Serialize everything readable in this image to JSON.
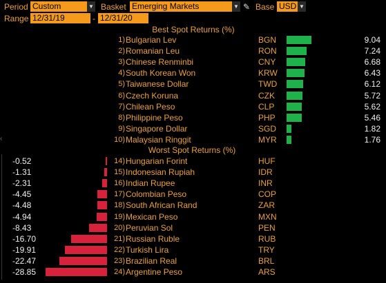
{
  "toolbar": {
    "period_label": "Period",
    "period_value": "Custom",
    "basket_label": "Basket",
    "basket_value": "Emerging Markets",
    "base_label": "Base",
    "base_value": "USD",
    "range_label": "Range",
    "range_start": "12/31/19",
    "range_sep": "-",
    "range_end": "12/31/20"
  },
  "best": {
    "title": "Best Spot Returns (%)",
    "max_value": 9.04,
    "rows": [
      {
        "rank": "1",
        "name": "Bulgarian Lev",
        "code": "BGN",
        "value": "9.04",
        "num": 9.04
      },
      {
        "rank": "2",
        "name": "Romanian Leu",
        "code": "RON",
        "value": "7.24",
        "num": 7.24
      },
      {
        "rank": "3",
        "name": "Chinese Renminbi",
        "code": "CNY",
        "value": "6.68",
        "num": 6.68
      },
      {
        "rank": "4",
        "name": "South Korean Won",
        "code": "KRW",
        "value": "6.43",
        "num": 6.43
      },
      {
        "rank": "5",
        "name": "Taiwanese Dollar",
        "code": "TWD",
        "value": "6.12",
        "num": 6.12
      },
      {
        "rank": "6",
        "name": "Czech Koruna",
        "code": "CZK",
        "value": "5.72",
        "num": 5.72
      },
      {
        "rank": "7",
        "name": "Chilean Peso",
        "code": "CLP",
        "value": "5.62",
        "num": 5.62
      },
      {
        "rank": "8",
        "name": "Philippine Peso",
        "code": "PHP",
        "value": "5.46",
        "num": 5.46
      },
      {
        "rank": "9",
        "name": "Singapore Dollar",
        "code": "SGD",
        "value": "1.82",
        "num": 1.82
      },
      {
        "rank": "10",
        "name": "Malaysian Ringgit",
        "code": "MYR",
        "value": "1.76",
        "num": 1.76
      }
    ]
  },
  "worst": {
    "title": "Worst Spot Returns (%)",
    "max_value": 28.85,
    "rows": [
      {
        "rank": "14",
        "name": "Hungarian Forint",
        "code": "HUF",
        "value": "-0.52",
        "num": -0.52
      },
      {
        "rank": "15",
        "name": "Indonesian Rupiah",
        "code": "IDR",
        "value": "-1.31",
        "num": -1.31
      },
      {
        "rank": "16",
        "name": "Indian Rupee",
        "code": "INR",
        "value": "-2.31",
        "num": -2.31
      },
      {
        "rank": "17",
        "name": "Colombian Peso",
        "code": "COP",
        "value": "-4.45",
        "num": -4.45
      },
      {
        "rank": "18",
        "name": "South African Rand",
        "code": "ZAR",
        "value": "-4.48",
        "num": -4.48
      },
      {
        "rank": "19",
        "name": "Mexican Peso",
        "code": "MXN",
        "value": "-4.94",
        "num": -4.94
      },
      {
        "rank": "20",
        "name": "Peruvian Sol",
        "code": "PEN",
        "value": "-8.43",
        "num": -8.43
      },
      {
        "rank": "21",
        "name": "Russian Ruble",
        "code": "RUB",
        "value": "-16.70",
        "num": -16.7
      },
      {
        "rank": "22",
        "name": "Turkish Lira",
        "code": "TRY",
        "value": "-19.91",
        "num": -19.91
      },
      {
        "rank": "23",
        "name": "Brazilian Real",
        "code": "BRL",
        "value": "-22.47",
        "num": -22.47
      },
      {
        "rank": "24",
        "name": "Argentine Peso",
        "code": "ARS",
        "value": "-28.85",
        "num": -28.85
      }
    ]
  },
  "colors": {
    "accent": "#e8a23a",
    "field_bg": "#f59a1a",
    "positive_bar": "#1fb24a",
    "negative_bar": "#d8213a"
  },
  "icons": {
    "dropdown": "dropdown-arrow-icon",
    "edit": "pencil-icon"
  }
}
